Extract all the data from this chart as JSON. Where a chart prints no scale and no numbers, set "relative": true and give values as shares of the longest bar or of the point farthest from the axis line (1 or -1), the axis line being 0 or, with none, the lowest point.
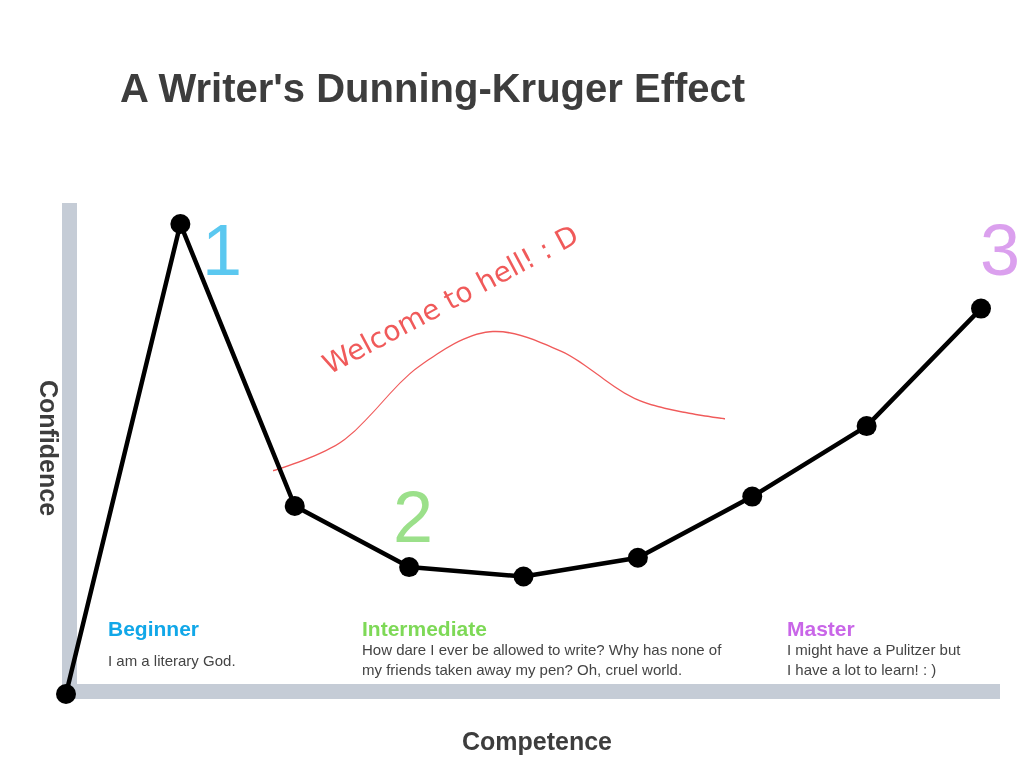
{
  "chart_data": {
    "type": "line",
    "title": "A Writer's Dunning-Kruger Effect",
    "xlabel": "Competence",
    "ylabel": "Confidence",
    "relative": true,
    "marker": "circle",
    "categories": [
      null,
      null,
      null,
      null,
      null,
      null,
      null,
      null,
      null
    ],
    "series": [
      {
        "color": "#000000",
        "values": [
          0,
          1,
          0.4,
          0.27,
          0.25,
          0.29,
          0.42,
          0.57,
          0.82
        ]
      }
    ],
    "annotations": [
      "1",
      "2",
      "3",
      "Beginner",
      "I am a literary God.",
      "Intermediate",
      "How dare I ever be allowed to write? Why has none of my friends taken away my pen? Oh, cruel world.",
      "Master",
      "I might have a Pulitzer but I have a lot to learn! : )",
      "Welcome to hell! : D"
    ]
  }
}
